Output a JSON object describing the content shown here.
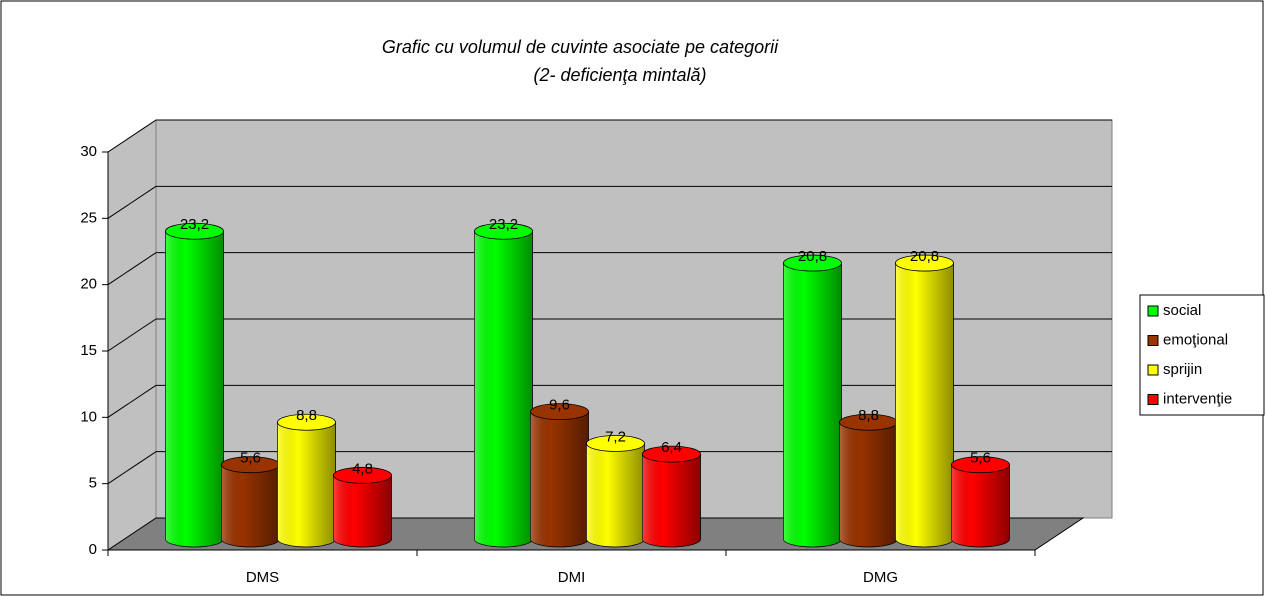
{
  "chart_data": {
    "type": "bar3d_cylinder",
    "title": "Grafic cu volumul de cuvinte asociate pe categorii",
    "subtitle": "(2- deficienţa mintală)",
    "categories": [
      "DMS",
      "DMI",
      "DMG"
    ],
    "series": [
      {
        "name": "social",
        "color": "#00ff00",
        "values": [
          23.2,
          23.2,
          20.8
        ],
        "value_labels": [
          "23,2",
          "23,2",
          "20,8"
        ]
      },
      {
        "name": "emoţional",
        "color": "#993300",
        "values": [
          5.6,
          9.6,
          8.8
        ],
        "value_labels": [
          "5,6",
          "9,6",
          "8,8"
        ]
      },
      {
        "name": "sprijin",
        "color": "#ffff00",
        "values": [
          8.8,
          7.2,
          20.8
        ],
        "value_labels": [
          "8,8",
          "7,2",
          "20,8"
        ]
      },
      {
        "name": "intervenţie",
        "color": "#ff0000",
        "values": [
          4.8,
          6.4,
          5.6
        ],
        "value_labels": [
          "4,8",
          "6,4",
          "5,6"
        ]
      }
    ],
    "ylim": [
      0,
      30
    ],
    "yticks": [
      0,
      5,
      10,
      15,
      20,
      25,
      30
    ],
    "grid": true,
    "legend": "right"
  }
}
